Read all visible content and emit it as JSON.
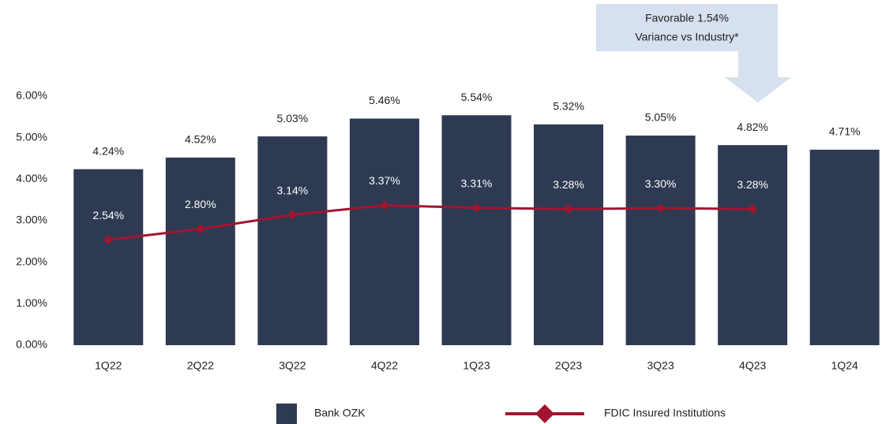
{
  "chart_data": {
    "type": "bar",
    "categories": [
      "1Q22",
      "2Q22",
      "3Q22",
      "4Q22",
      "1Q23",
      "2Q23",
      "3Q23",
      "4Q23",
      "1Q24"
    ],
    "series": [
      {
        "name": "Bank OZK",
        "type": "bar",
        "color": "#2e3a52",
        "values": [
          4.24,
          4.52,
          5.03,
          5.46,
          5.54,
          5.32,
          5.05,
          4.82,
          4.71
        ],
        "value_labels": [
          "4.24%",
          "4.52%",
          "5.03%",
          "5.46%",
          "5.54%",
          "5.32%",
          "5.05%",
          "4.82%",
          "4.71%"
        ]
      },
      {
        "name": "FDIC Insured Institutions",
        "type": "line",
        "color": "#a3152f",
        "values": [
          2.54,
          2.8,
          3.14,
          3.37,
          3.31,
          3.28,
          3.3,
          3.28,
          null
        ],
        "value_labels": [
          "2.54%",
          "2.80%",
          "3.14%",
          "3.37%",
          "3.31%",
          "3.28%",
          "3.30%",
          "3.28%",
          null
        ]
      }
    ],
    "ylim": [
      0,
      6
    ],
    "yticks": [
      {
        "value": 0,
        "label": "0.00%"
      },
      {
        "value": 1,
        "label": "1.00%"
      },
      {
        "value": 2,
        "label": "2.00%"
      },
      {
        "value": 3,
        "label": "3.00%"
      },
      {
        "value": 4,
        "label": "4.00%"
      },
      {
        "value": 5,
        "label": "5.00%"
      },
      {
        "value": 6,
        "label": "6.00%"
      }
    ],
    "annotation": [
      "Favorable 1.54%",
      "Variance vs Industry*"
    ]
  }
}
